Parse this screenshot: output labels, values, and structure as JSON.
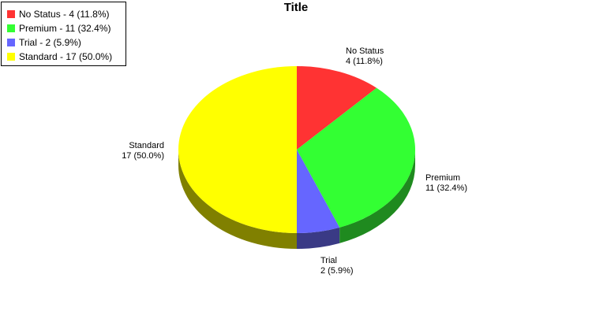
{
  "chart_data": {
    "type": "pie",
    "title": "Title",
    "slices": [
      {
        "name": "No Status",
        "value": 4,
        "percent": "11.8%",
        "legend_label": "No Status - 4 (11.8%)",
        "label_line1": "No Status",
        "label_line2": "4 (11.8%)",
        "color": "#ff3333",
        "side_color": "#802020"
      },
      {
        "name": "Premium",
        "value": 11,
        "percent": "32.4%",
        "legend_label": "Premium - 11 (32.4%)",
        "label_line1": "Premium",
        "label_line2": "11 (32.4%)",
        "color": "#33ff33",
        "side_color": "#1f8a1f"
      },
      {
        "name": "Trial",
        "value": 2,
        "percent": "5.9%",
        "legend_label": "Trial - 2 (5.9%)",
        "label_line1": "Trial",
        "label_line2": "2 (5.9%)",
        "color": "#6666ff",
        "side_color": "#3a3a85"
      },
      {
        "name": "Standard",
        "value": 17,
        "percent": "50.0%",
        "legend_label": "Standard - 17 (50.0%)",
        "label_line1": "Standard",
        "label_line2": "17 (50.0%)",
        "color": "#ffff00",
        "side_color": "#808000"
      }
    ],
    "legend_position": "top-left",
    "three_d": true
  }
}
